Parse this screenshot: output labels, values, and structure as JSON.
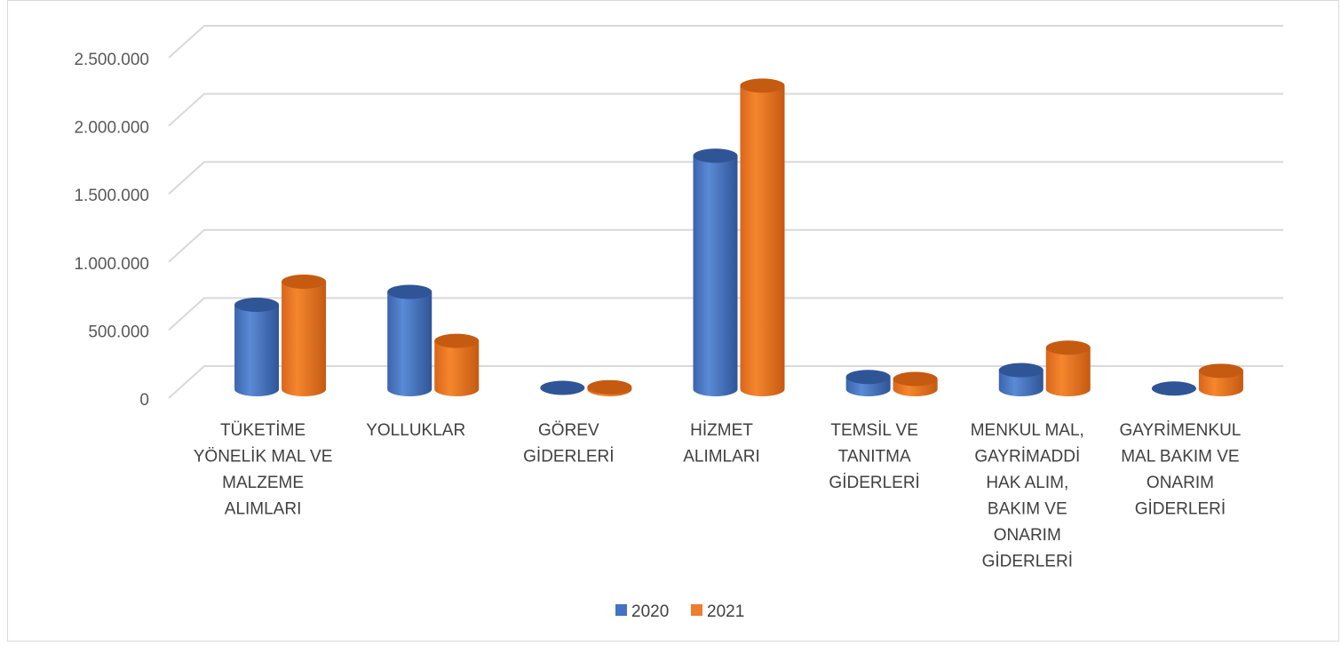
{
  "chart_data": {
    "type": "bar",
    "title": "",
    "xlabel": "",
    "ylabel": "",
    "ylim": [
      0,
      2500000
    ],
    "yticks": [
      "0",
      "500.000",
      "1.000.000",
      "1.500.000",
      "2.000.000",
      "2.500.000"
    ],
    "grid": true,
    "legend_position": "bottom",
    "categories": [
      [
        "TÜKETİME",
        "YÖNELİK MAL VE",
        "MALZEME",
        "ALIMLARI"
      ],
      [
        "YOLLUKLAR"
      ],
      [
        "GÖREV",
        "GİDERLERİ"
      ],
      [
        "HİZMET",
        "ALIMLARI"
      ],
      [
        "TEMSİL VE",
        "TANITMA",
        "GİDERLERİ"
      ],
      [
        "MENKUL MAL,",
        "GAYRİMADDİ",
        "HAK ALIM,",
        "BAKIM VE",
        "ONARIM",
        "GİDERLERİ"
      ],
      [
        "GAYRİMENKUL",
        "MAL BAKIM VE",
        "ONARIM",
        "GİDERLERİ"
      ]
    ],
    "series": [
      {
        "name": "2020",
        "color": "#4472c4",
        "values": [
          620000,
          715000,
          10000,
          1715000,
          90000,
          140000,
          5000
        ]
      },
      {
        "name": "2021",
        "color": "#ed7d31",
        "values": [
          790000,
          355000,
          15000,
          2230000,
          75000,
          305000,
          135000
        ]
      }
    ]
  }
}
